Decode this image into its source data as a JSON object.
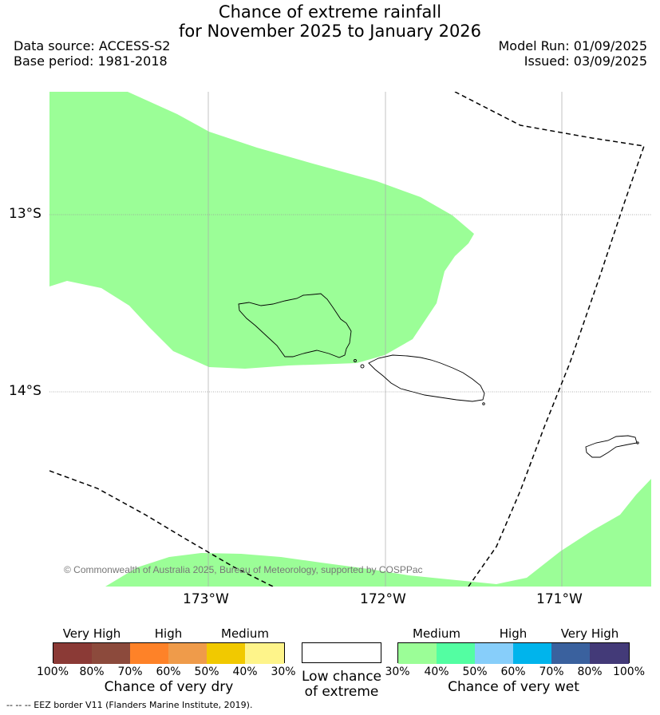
{
  "title_line1": "Chance of extreme rainfall",
  "title_line2": "for November 2025 to January 2026",
  "data_source": "Data source: ACCESS-S2",
  "base_period": "Base period: 1981-2018",
  "model_run": "Model Run: 01/09/2025",
  "issued": "Issued: 03/09/2025",
  "map": {
    "lat_labels": [
      "13°S",
      "14°S"
    ],
    "lon_labels": [
      "173°W",
      "172°W",
      "171°W"
    ],
    "copyright": "© Commonwealth of Australia 2025, Bureau of Meteorology, supported by COSPPac",
    "colors": {
      "wet_medium": "#9bfe97",
      "border": "#000000",
      "grid": "#999999"
    }
  },
  "legend": {
    "dry": {
      "group_labels": [
        "Very High",
        "High",
        "Medium"
      ],
      "ticks": [
        "100%",
        "80%",
        "70%",
        "60%",
        "50%",
        "40%",
        "30%"
      ],
      "colors": [
        "#8b3a36",
        "#8c4a3c",
        "#fe8228",
        "#ef9b4a",
        "#f1c900",
        "#fef48a"
      ],
      "title": "Chance of very dry"
    },
    "low": {
      "label_line1": "Low chance",
      "label_line2": "of extreme"
    },
    "wet": {
      "group_labels": [
        "Medium",
        "High",
        "Very High"
      ],
      "ticks": [
        "30%",
        "40%",
        "50%",
        "60%",
        "70%",
        "80%",
        "100%"
      ],
      "colors": [
        "#9bfe97",
        "#53fea2",
        "#87cefa",
        "#00b4ec",
        "#3a619e",
        "#433a78"
      ],
      "title": "Chance of very wet"
    }
  },
  "footer": "--  --  -- EEZ border V11 (Flanders Marine Institute, 2019)."
}
